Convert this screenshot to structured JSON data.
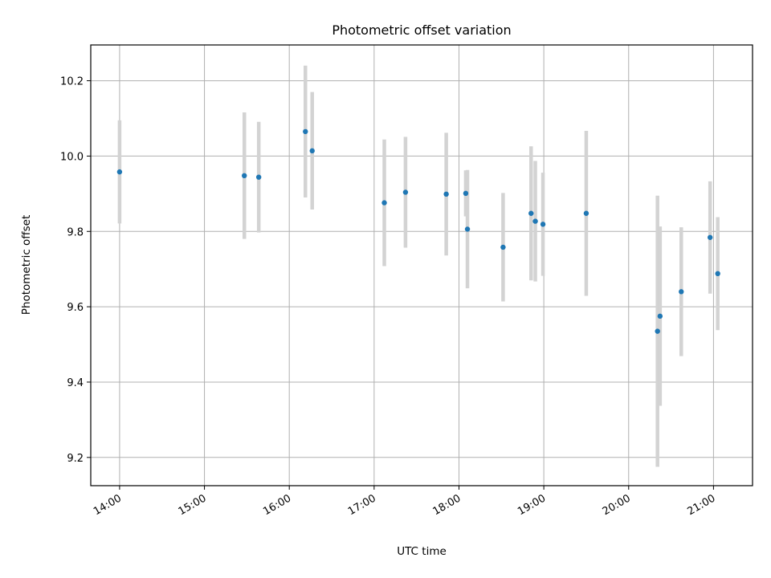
{
  "chart_data": {
    "type": "scatter",
    "title": "Photometric offset variation",
    "xlabel": "UTC time",
    "ylabel": "Photometric offset",
    "xlim": [
      13.66,
      21.46
    ],
    "ylim": [
      9.125,
      10.295
    ],
    "grid": true,
    "x_ticks": [
      {
        "value": 14,
        "label": "14:00"
      },
      {
        "value": 15,
        "label": "15:00"
      },
      {
        "value": 16,
        "label": "16:00"
      },
      {
        "value": 17,
        "label": "17:00"
      },
      {
        "value": 18,
        "label": "18:00"
      },
      {
        "value": 19,
        "label": "19:00"
      },
      {
        "value": 20,
        "label": "20:00"
      },
      {
        "value": 21,
        "label": "21:00"
      }
    ],
    "y_ticks": [
      {
        "value": 9.2,
        "label": "9.2"
      },
      {
        "value": 9.4,
        "label": "9.4"
      },
      {
        "value": 9.6,
        "label": "9.6"
      },
      {
        "value": 9.8,
        "label": "9.8"
      },
      {
        "value": 10.0,
        "label": "10.0"
      },
      {
        "value": 10.2,
        "label": "10.2"
      }
    ],
    "point_color": "#1f77b4",
    "errorbar_color": "#d3d3d3",
    "series": [
      {
        "name": "offset",
        "points": [
          {
            "x": 14.0,
            "y": 9.958,
            "err": 0.137
          },
          {
            "x": 15.47,
            "y": 9.948,
            "err": 0.168
          },
          {
            "x": 15.64,
            "y": 9.944,
            "err": 0.147
          },
          {
            "x": 16.19,
            "y": 10.065,
            "err": 0.175
          },
          {
            "x": 16.27,
            "y": 10.014,
            "err": 0.156
          },
          {
            "x": 17.12,
            "y": 9.876,
            "err": 0.168
          },
          {
            "x": 17.37,
            "y": 9.904,
            "err": 0.147
          },
          {
            "x": 17.85,
            "y": 9.899,
            "err": 0.163
          },
          {
            "x": 18.08,
            "y": 9.901,
            "err": 0.061
          },
          {
            "x": 18.1,
            "y": 9.806,
            "err": 0.157
          },
          {
            "x": 18.52,
            "y": 9.758,
            "err": 0.144
          },
          {
            "x": 18.85,
            "y": 9.848,
            "err": 0.178
          },
          {
            "x": 18.9,
            "y": 9.827,
            "err": 0.16
          },
          {
            "x": 18.99,
            "y": 9.819,
            "err": 0.137
          },
          {
            "x": 19.5,
            "y": 9.848,
            "err": 0.219
          },
          {
            "x": 20.34,
            "y": 9.535,
            "err": 0.36
          },
          {
            "x": 20.37,
            "y": 9.575,
            "err": 0.238
          },
          {
            "x": 20.62,
            "y": 9.64,
            "err": 0.171
          },
          {
            "x": 20.96,
            "y": 9.784,
            "err": 0.149
          },
          {
            "x": 21.05,
            "y": 9.688,
            "err": 0.15
          }
        ]
      }
    ]
  }
}
